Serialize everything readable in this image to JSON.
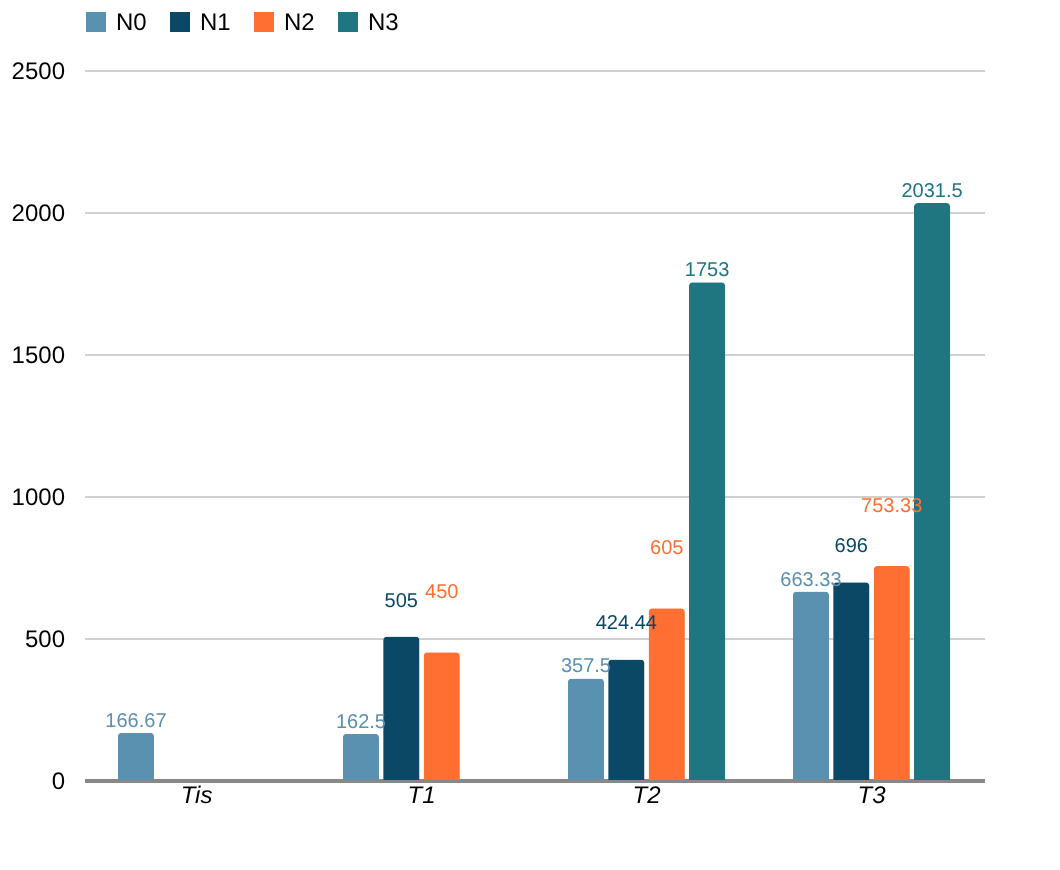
{
  "chart_data": {
    "type": "bar",
    "categories": [
      "Tis",
      "T1",
      "T2",
      "T3"
    ],
    "series": [
      {
        "name": "N0",
        "color": "#5b91b0",
        "values": [
          166.67,
          162.5,
          357.5,
          663.33
        ]
      },
      {
        "name": "N1",
        "color": "#0b4866",
        "values": [
          null,
          505,
          424.44,
          696
        ]
      },
      {
        "name": "N2",
        "color": "#ff6f31",
        "values": [
          null,
          450,
          605,
          753.33
        ]
      },
      {
        "name": "N3",
        "color": "#1f7680",
        "values": [
          null,
          null,
          1753,
          2031.5
        ]
      }
    ],
    "ylim": [
      0,
      2500
    ],
    "yticks": [
      0,
      500,
      1000,
      1500,
      2000,
      2500
    ],
    "grid": "y",
    "legend": "top",
    "data_labels": true
  }
}
